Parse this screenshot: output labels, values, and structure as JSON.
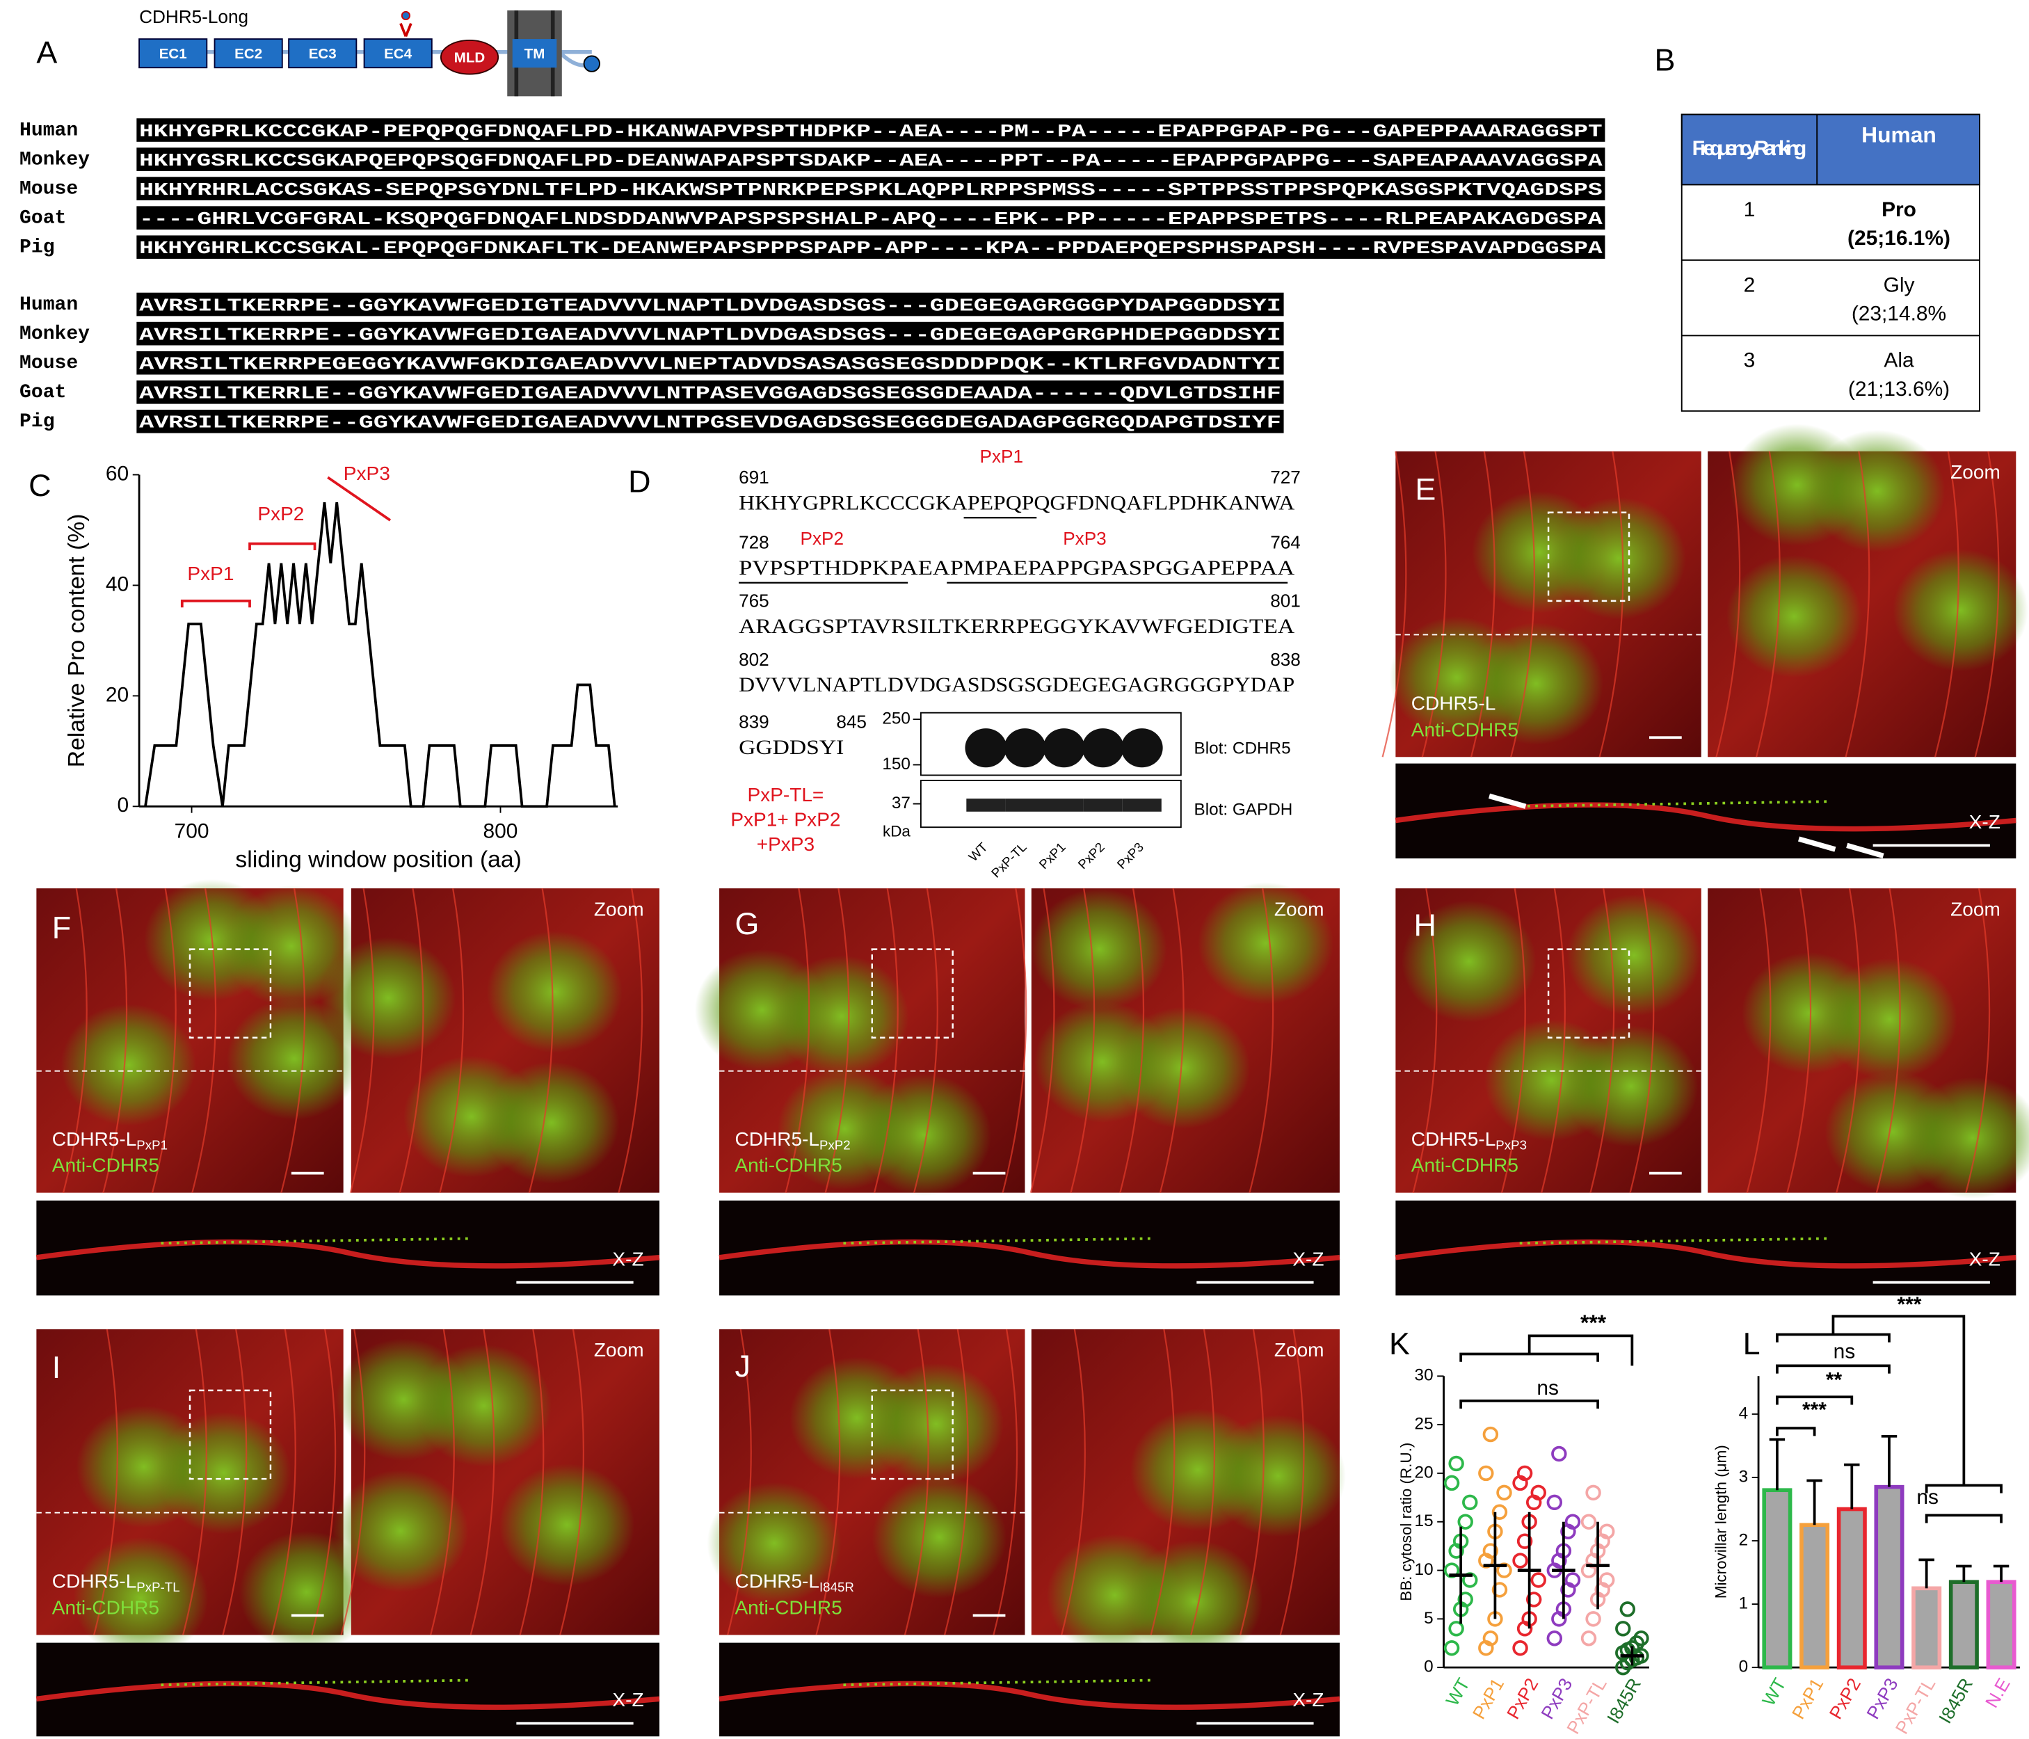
{
  "panel_labels": [
    "A",
    "B",
    "C",
    "D",
    "E",
    "F",
    "G",
    "H",
    "I",
    "J",
    "K",
    "L"
  ],
  "panel_a": {
    "title": "CDHR5-Long",
    "domains": [
      "EC1",
      "EC2",
      "EC3",
      "EC4",
      "MLD",
      "TM"
    ],
    "blocks": [
      [
        {
          "species": "Human",
          "seq": "HKHYGPRLKCCCGKAP-PEPQPQGFDNQAFLPD-HKANWAPVPSPTHDPKP--AEA----PM--PA-----EPAPPGPAP-PG---GAPEPPAAARAGGSPT"
        },
        {
          "species": "Monkey",
          "seq": "HKHYGSRLKCCSGKAPQEPQPSQGFDNQAFLPD-DEANWAPAPSPTSDAKP--AEA----PPT--PA-----EPAPPGPAPPG---SAPEAPAAAVAGGSPA"
        },
        {
          "species": "Mouse",
          "seq": "HKHYRHRLACCSGKAS-SEPQPSGYDNLTFLPD-HKAKWSPTPNRKPEPSPKLAQPPLRPPSPMSS-----SPTPPSSTPPSPQPKASGSPKTVQAGDSPS"
        },
        {
          "species": "Goat",
          "seq": "----GHRLVCGFGRAL-KSQPQGFDNQAFLNDSDDANWVPAPSPSPSHALP-APQ----EPK--PP-----EPAPPSPETPS----RLPEAPAKAGDGSPA"
        },
        {
          "species": "Pig",
          "seq": "HKHYGHRLKCCSGKAL-EPQPQGFDNKAFLTK-DEANWEPAPSPPPSPAPP-APP----KPA--PPDAEPQEPSPHSPAPSH----RVPESPAVAPDGGSPA"
        }
      ],
      [
        {
          "species": "Human",
          "seq": "AVRSILTKERRPE--GGYKAVWFGEDIGTEADVVVLNAPTLDVDGASDSGS---GDEGEGAGRGGGPYDAPGGDDSYI"
        },
        {
          "species": "Monkey",
          "seq": "AVRSILTKERRPE--GGYKAVWFGEDIGAEADVVVLNAPTLDVDGASDSGS---GDEGEGAGPGRGPHDEPGGDDSYI"
        },
        {
          "species": "Mouse",
          "seq": "AVRSILTKERRPEGEGGYKAVWFGKDIGAEADVVVLNEPTADVDSASASGSEGSDDDPDQK--KTLRFGVDADNTYI"
        },
        {
          "species": "Goat",
          "seq": "AVRSILTKERRLE--GGYKAVWFGEDIGAEADVVVLNTPASEVGGAGDSGSEGSGDEAADA------QDVLGTDSIHF"
        },
        {
          "species": "Pig",
          "seq": "AVRSILTKERRPE--GGYKAVWFGEDIGAEADVVVLNTPGSEVDGAGDSGSEGGGDEGADAGPGGRGQDAPGTDSIYF"
        }
      ]
    ]
  },
  "table": {
    "header": [
      "Frequency Ranking",
      "Human"
    ],
    "rows": [
      [
        "1",
        "Pro",
        "(25;16.1%)"
      ],
      [
        "2",
        "Gly",
        "(23;14.8%"
      ],
      [
        "3",
        "Ala",
        "(21;13.6%)"
      ]
    ]
  },
  "chart_data": [
    {
      "type": "line",
      "color": "#000000",
      "x": [
        685,
        688,
        695,
        697,
        699,
        703,
        705,
        707,
        710,
        712,
        717,
        719,
        721,
        723,
        725,
        727,
        729,
        731,
        733,
        735,
        737,
        739,
        741,
        743,
        745,
        747,
        749,
        751,
        753,
        755,
        757,
        759,
        761,
        769,
        771,
        775,
        777,
        785,
        787,
        795,
        797,
        805,
        807,
        815,
        817,
        823,
        825,
        829,
        831,
        835,
        837
      ],
      "values": [
        0,
        11,
        11,
        22,
        33,
        33,
        22,
        11,
        0,
        11,
        11,
        22,
        33,
        33,
        44,
        33,
        44,
        33,
        44,
        33,
        44,
        33,
        44,
        55,
        44,
        55,
        44,
        33,
        33,
        44,
        33,
        22,
        11,
        11,
        0,
        0,
        11,
        11,
        0,
        0,
        11,
        11,
        0,
        0,
        11,
        11,
        22,
        22,
        11,
        11,
        0
      ],
      "xlim": [
        683,
        838
      ],
      "ylim": [
        0,
        60
      ],
      "xticks": [
        700,
        800
      ],
      "yticks": [
        0,
        20,
        40,
        60
      ],
      "xlabel": "sliding window position (aa)",
      "ylabel": "Relative Pro content (%)",
      "annotations": [
        "PxP1",
        "PxP2",
        "PxP3"
      ]
    },
    {
      "type": "scatter",
      "ylabel": "BB: cytosol ratio (R.U.)",
      "categories": [
        "WT",
        "PxP1",
        "PxP2",
        "PxP3",
        "PxP-TL",
        "I845R"
      ],
      "colors": [
        "#2db84a",
        "#f5a03c",
        "#e8262e",
        "#8e3bbf",
        "#f4a6a6",
        "#1e6e2a"
      ],
      "points": [
        [
          2,
          4,
          6,
          7,
          9,
          10,
          12,
          13,
          15,
          17,
          19,
          21
        ],
        [
          2,
          3,
          5,
          8,
          10,
          11,
          12,
          14,
          16,
          18,
          20,
          24
        ],
        [
          2,
          4,
          5,
          7,
          9,
          11,
          13,
          15,
          17,
          18,
          19,
          20
        ],
        [
          3,
          5,
          6,
          8,
          9,
          10,
          11,
          12,
          14,
          15,
          17,
          22
        ],
        [
          3,
          5,
          7,
          8,
          9,
          10,
          11,
          12,
          13,
          14,
          15,
          18
        ],
        [
          0,
          0.5,
          0.8,
          1,
          1.2,
          1.5,
          1.8,
          2,
          2.5,
          3,
          4,
          6
        ]
      ],
      "means": [
        9.5,
        10.5,
        10,
        10,
        10.5,
        1.2
      ],
      "sds": [
        5,
        5.5,
        6,
        5,
        4.5,
        1
      ],
      "ylim": [
        0,
        30
      ],
      "yticks": [
        0,
        5,
        10,
        15,
        20,
        25,
        30
      ],
      "annotations": [
        "***",
        "ns"
      ]
    },
    {
      "type": "bar",
      "ylabel": "Microvillar length (μm)",
      "categories": [
        "WT",
        "PxP1",
        "PxP2",
        "PxP3",
        "PxP-TL",
        "I845R",
        "N.E"
      ],
      "colors": [
        "#2db84a",
        "#f5a03c",
        "#e8262e",
        "#8e3bbf",
        "#f4a6a6",
        "#1e6e2a",
        "#e85ad0"
      ],
      "fill": "#a6a6a6",
      "values": [
        2.8,
        2.25,
        2.5,
        2.85,
        1.25,
        1.35,
        1.35
      ],
      "errors": [
        0.8,
        0.7,
        0.7,
        0.8,
        0.45,
        0.25,
        0.25
      ],
      "ylim": [
        0,
        4.6
      ],
      "yticks": [
        0,
        1,
        2,
        3,
        4
      ],
      "annotations": [
        "***",
        "**",
        "ns",
        "***",
        "ns"
      ]
    }
  ],
  "panel_d": {
    "lines": [
      {
        "start": "691",
        "seq": "HKHYGPRLKCCCGKAPEPQPQGFDNQAFLPDHKANWA",
        "end": "727"
      },
      {
        "start": "728",
        "seq": "PVPSPTHDPKPAEAPMPAEPAPPGPASPGGAPEPPAA",
        "end": "764"
      },
      {
        "start": "765",
        "seq": "ARAGGSPTAVRSILTKERRPEGGYKAVWFGEDIGTEA",
        "end": "801"
      },
      {
        "start": "802",
        "seq": "DVVVLNAPTLDVDGASDSGSGDEGEGAGRGGGPYDAP",
        "end": "838"
      },
      {
        "start": "839",
        "seq": "GGDDSYI",
        "end": "845"
      }
    ],
    "motifs": [
      "PxP1",
      "PxP2",
      "PxP3"
    ],
    "note": [
      "PxP-TL=",
      "PxP1+ PxP2",
      "+PxP3"
    ],
    "blot": {
      "markers": [
        "250",
        "150",
        "37"
      ],
      "unit": "kDa",
      "labels": [
        "Blot: CDHR5",
        "Blot: GAPDH"
      ],
      "lanes": [
        "WT",
        "PxP-TL",
        "PxP1",
        "PxP2",
        "PxP3"
      ]
    }
  },
  "images": {
    "zoom": "Zoom",
    "xz": "X-Z",
    "antibody": "Anti-CDHR5",
    "constructs": [
      {
        "name": "CDHR5-L"
      },
      {
        "name": "CDHR5-L",
        "sub": "PxP1"
      },
      {
        "name": "CDHR5-L",
        "sub": "PxP2"
      },
      {
        "name": "CDHR5-L",
        "sub": "PxP3"
      },
      {
        "name": "CDHR5-L",
        "sub": "PxP-TL"
      },
      {
        "name": "CDHR5-L",
        "sub": "I845R"
      }
    ]
  }
}
